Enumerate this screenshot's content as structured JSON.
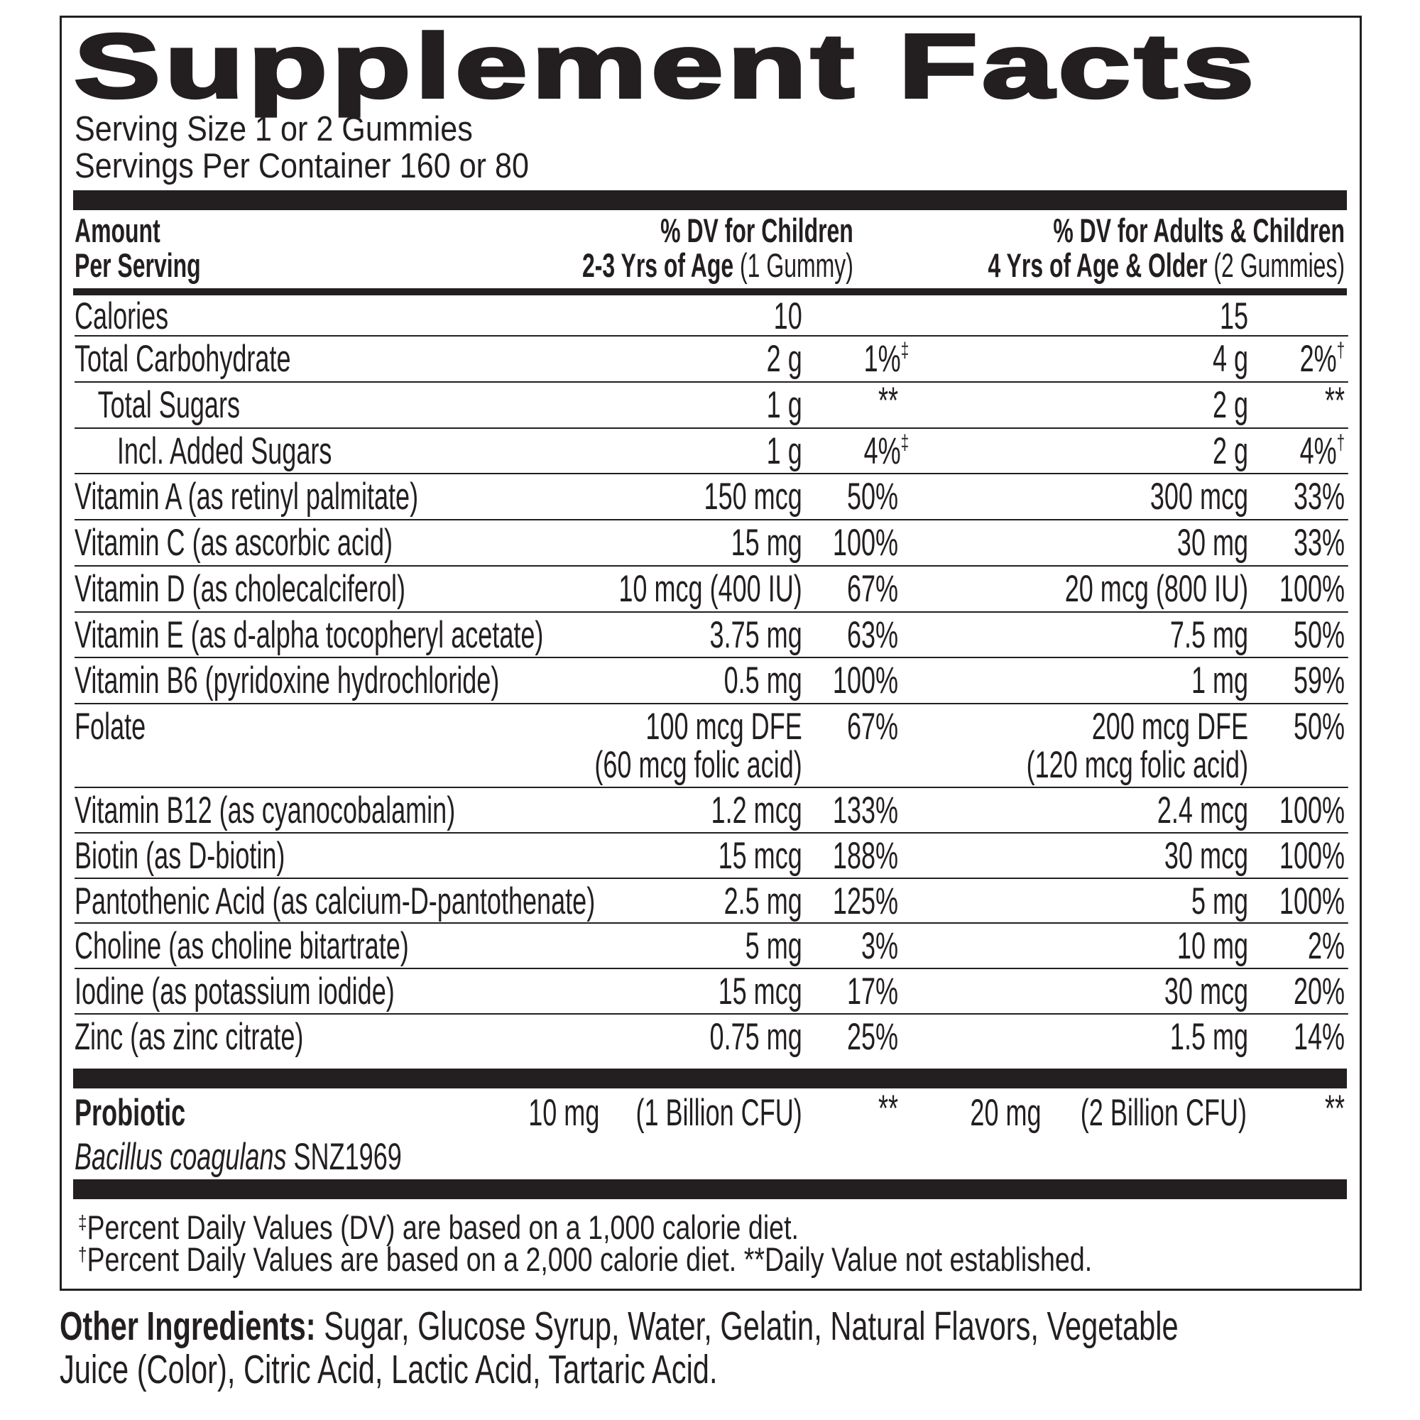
{
  "title": "Supplement Facts",
  "serving_size": "Serving Size 1 or 2 Gummies",
  "servings_per_container": "Servings Per Container 160 or 80",
  "header": {
    "amount_line1": "Amount",
    "amount_line2": "Per Serving",
    "children_line1": "% DV for Children",
    "children_line2_bold": "2-3 Yrs of Age",
    "children_line2_normal": " (1 Gummy)",
    "adults_line1": "% DV for Adults & Children",
    "adults_line2_bold": "4 Yrs of Age & Older",
    "adults_line2_normal": " (2 Gummies)"
  },
  "rows": [
    {
      "label": "Calories",
      "indent": 0,
      "child_amount": "10",
      "child_dv": "",
      "child_mark": "",
      "adult_amount": "15",
      "adult_dv": "",
      "adult_mark": ""
    },
    {
      "label": "Total Carbohydrate",
      "indent": 0,
      "child_amount": "2 g",
      "child_dv": "1%",
      "child_mark": "‡",
      "adult_amount": "4 g",
      "adult_dv": "2%",
      "adult_mark": "†"
    },
    {
      "label": "Total Sugars",
      "indent": 1,
      "child_amount": "1 g",
      "child_dv": "**",
      "child_mark": "",
      "adult_amount": "2 g",
      "adult_dv": "**",
      "adult_mark": ""
    },
    {
      "label": "Incl. Added Sugars",
      "indent": 2,
      "child_amount": "1 g",
      "child_dv": "4%",
      "child_mark": "‡",
      "adult_amount": "2 g",
      "adult_dv": "4%",
      "adult_mark": "†"
    },
    {
      "label": "Vitamin A (as retinyl palmitate)",
      "indent": 0,
      "child_amount": "150 mcg",
      "child_dv": "50%",
      "child_mark": "",
      "adult_amount": "300 mcg",
      "adult_dv": "33%",
      "adult_mark": ""
    },
    {
      "label": "Vitamin C (as ascorbic acid)",
      "indent": 0,
      "child_amount": "15 mg",
      "child_dv": "100%",
      "child_mark": "",
      "adult_amount": "30 mg",
      "adult_dv": "33%",
      "adult_mark": ""
    },
    {
      "label": "Vitamin D (as cholecalciferol)",
      "indent": 0,
      "child_amount": "10 mcg (400 IU)",
      "child_dv": "67%",
      "child_mark": "",
      "adult_amount": "20 mcg (800 IU)",
      "adult_dv": "100%",
      "adult_mark": ""
    },
    {
      "label": "Vitamin E (as d-alpha tocopheryl acetate)",
      "indent": 0,
      "child_amount": "3.75 mg",
      "child_dv": "63%",
      "child_mark": "",
      "adult_amount": "7.5 mg",
      "adult_dv": "50%",
      "adult_mark": ""
    },
    {
      "label": "Vitamin B6 (pyridoxine hydrochloride)",
      "indent": 0,
      "child_amount": "0.5 mg",
      "child_dv": "100%",
      "child_mark": "",
      "adult_amount": "1 mg",
      "adult_dv": "59%",
      "adult_mark": ""
    },
    {
      "label": "Folate",
      "indent": 0,
      "child_amount": "100 mcg DFE",
      "child_amount2": "(60 mcg folic acid)",
      "child_dv": "67%",
      "child_mark": "",
      "adult_amount": "200 mcg DFE",
      "adult_amount2": "(120 mcg folic acid)",
      "adult_dv": "50%",
      "adult_mark": ""
    },
    {
      "label": "Vitamin B12 (as cyanocobalamin)",
      "indent": 0,
      "child_amount": "1.2 mcg",
      "child_dv": "133%",
      "child_mark": "",
      "adult_amount": "2.4 mcg",
      "adult_dv": "100%",
      "adult_mark": ""
    },
    {
      "label": "Biotin (as D-biotin)",
      "indent": 0,
      "child_amount": "15 mcg",
      "child_dv": "188%",
      "child_mark": "",
      "adult_amount": "30 mcg",
      "adult_dv": "100%",
      "adult_mark": ""
    },
    {
      "label": "Pantothenic Acid (as calcium-D-pantothenate)",
      "indent": 0,
      "child_amount": "2.5 mg",
      "child_dv": "125%",
      "child_mark": "",
      "adult_amount": "5 mg",
      "adult_dv": "100%",
      "adult_mark": ""
    },
    {
      "label": "Choline (as choline bitartrate)",
      "indent": 0,
      "child_amount": "5 mg",
      "child_dv": "3%",
      "child_mark": "",
      "adult_amount": "10 mg",
      "adult_dv": "2%",
      "adult_mark": ""
    },
    {
      "label": "Iodine (as potassium iodide)",
      "indent": 0,
      "child_amount": "15 mcg",
      "child_dv": "17%",
      "child_mark": "",
      "adult_amount": "30 mcg",
      "adult_dv": "20%",
      "adult_mark": ""
    },
    {
      "label": "Zinc (as zinc citrate)",
      "indent": 0,
      "child_amount": "0.75 mg",
      "child_dv": "25%",
      "child_mark": "",
      "adult_amount": "1.5 mg",
      "adult_dv": "14%",
      "adult_mark": ""
    }
  ],
  "probiotic": {
    "label": "Probiotic",
    "species_italic": "Bacillus coagulans",
    "strain": " SNZ1969",
    "child_amount": "10 mg",
    "child_cfu": "(1 Billion CFU)",
    "child_dv": "**",
    "adult_amount": "20 mg",
    "adult_cfu": "(2 Billion CFU)",
    "adult_dv": "**"
  },
  "footnotes": {
    "mark1": "‡",
    "line1": "Percent Daily Values (DV) are based on a 1,000 calorie diet.",
    "mark2": "†",
    "line2": "Percent Daily Values are based on a 2,000 calorie diet. **Daily Value not established."
  },
  "other_ingredients": {
    "label": "Other Ingredients:",
    "text": " Sugar, Glucose Syrup, Water, Gelatin, Natural Flavors, Vegetable Juice (Color), Citric Acid, Lactic Acid, Tartaric Acid."
  }
}
